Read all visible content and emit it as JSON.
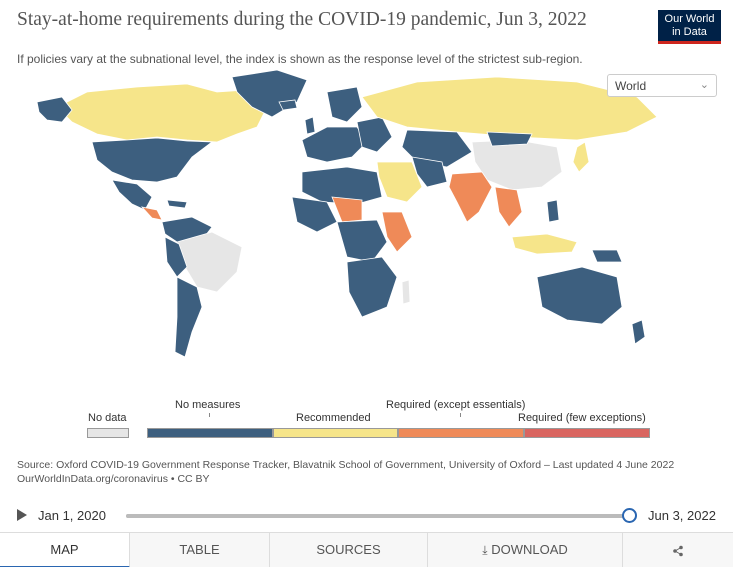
{
  "header": {
    "title": "Stay-at-home requirements during the COVID-19 pandemic, Jun 3, 2022",
    "subtitle": "If policies vary at the subnational level, the index is shown as the response level of the strictest sub-region.",
    "logo_line1": "Our World",
    "logo_line2": "in Data"
  },
  "region_select": {
    "value": "World",
    "icon": "chevron-down-icon"
  },
  "colors": {
    "no_data": "#e6e6e6",
    "no_measures": "#3d5f7f",
    "recommended": "#f6e58a",
    "required_except_essentials": "#ef8a58",
    "required_few_exceptions": "#d96560",
    "ocean": "#ffffff"
  },
  "legend": {
    "no_data": "No data",
    "items": [
      "No measures",
      "Recommended",
      "Required (except essentials)",
      "Required (few exceptions)"
    ]
  },
  "source": {
    "line1": "Source: Oxford COVID-19 Government Response Tracker, Blavatnik School of Government, University of Oxford – Last updated 4 June 2022",
    "line2": "OurWorldInData.org/coronavirus • CC BY"
  },
  "timeline": {
    "start": "Jan 1, 2020",
    "end": "Jun 3, 2022",
    "progress": 1.0
  },
  "tabs": [
    {
      "label": "MAP",
      "active": true
    },
    {
      "label": "TABLE",
      "active": false
    },
    {
      "label": "SOURCES",
      "active": false
    },
    {
      "label": "DOWNLOAD",
      "active": false,
      "icon": "download-icon"
    },
    {
      "label": "",
      "active": false,
      "icon": "share-icon"
    }
  ]
}
